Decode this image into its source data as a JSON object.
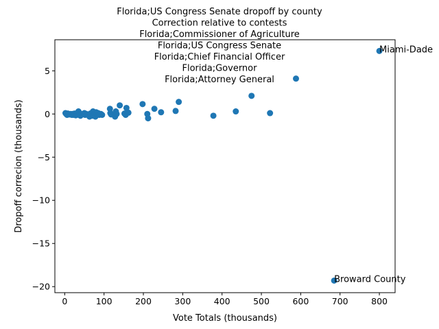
{
  "chart_data": {
    "type": "scatter",
    "title_lines": [
      "Florida;US Congress Senate dropoff by county",
      "Correction relative to contests",
      "Florida;Commissioner of Agriculture",
      "Florida;US Congress Senate",
      "Florida;Chief Financial Officer",
      "Florida;Governor",
      "Florida;Attorney General"
    ],
    "xlabel": "Vote Totals (thousands)",
    "ylabel": "Dropoff correcion (thousands)",
    "xlim": [
      -25,
      840
    ],
    "ylim": [
      -20.7,
      8.6
    ],
    "xticks": [
      0,
      100,
      200,
      300,
      400,
      500,
      600,
      700,
      800
    ],
    "yticks": [
      -20,
      -15,
      -10,
      -5,
      0,
      5
    ],
    "point_color": "#1f77b4",
    "series": [
      {
        "x": [
          2,
          4,
          6,
          8,
          10,
          12,
          15,
          18,
          20,
          22,
          25,
          28,
          30,
          32,
          35,
          36,
          38,
          40,
          42,
          45,
          50,
          52,
          55,
          60,
          63,
          65,
          68,
          70,
          72,
          75,
          76,
          78,
          80,
          82,
          85,
          88,
          92,
          95,
          115,
          116,
          118,
          128,
          130,
          132,
          140,
          152,
          155,
          157,
          162,
          198,
          210,
          212,
          228,
          245,
          282,
          290,
          378,
          435,
          475,
          522,
          588,
          685,
          800
        ],
        "y": [
          0.1,
          0.0,
          -0.1,
          0.05,
          0.0,
          -0.05,
          0.0,
          -0.1,
          0.0,
          -0.1,
          0.05,
          -0.15,
          -0.1,
          0.0,
          0.3,
          -0.1,
          0.0,
          -0.2,
          0.0,
          -0.05,
          0.1,
          -0.1,
          0.0,
          -0.1,
          -0.3,
          0.05,
          0.0,
          -0.2,
          0.3,
          -0.1,
          0.0,
          -0.3,
          0.2,
          0.0,
          0.1,
          -0.1,
          0.0,
          -0.1,
          0.6,
          0.1,
          -0.05,
          -0.3,
          0.3,
          0.0,
          1.0,
          0.05,
          -0.1,
          0.7,
          0.15,
          1.15,
          0.0,
          -0.5,
          0.6,
          0.2,
          0.35,
          1.4,
          -0.2,
          0.3,
          2.1,
          0.1,
          4.1,
          -19.3,
          7.3
        ]
      }
    ],
    "annotations": [
      {
        "text": "Miami-Dade",
        "x": 800,
        "y": 7.3
      },
      {
        "text": "Broward County",
        "x": 685,
        "y": -19.3
      }
    ]
  }
}
